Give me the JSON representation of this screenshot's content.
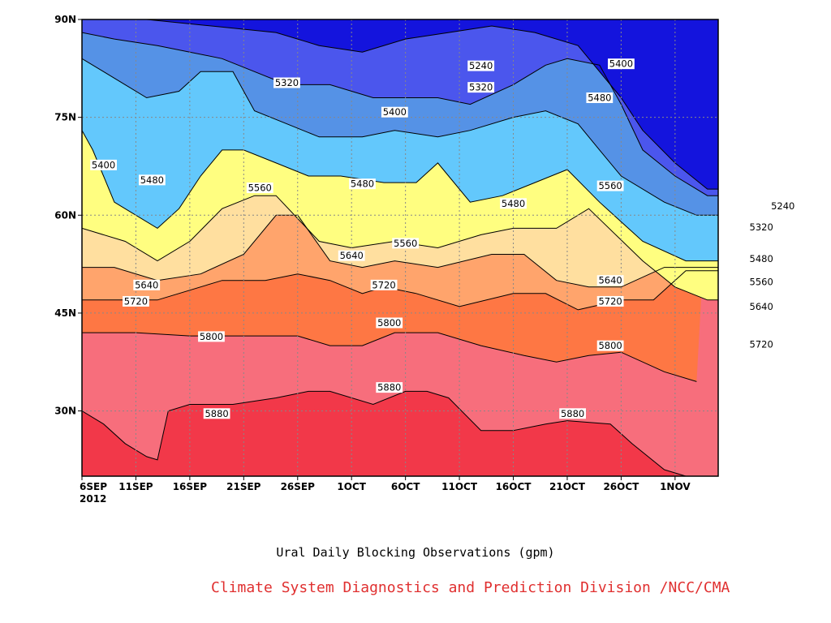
{
  "chart_data": {
    "type": "contour",
    "title": "Ural Daily Blocking Observations (gpm)",
    "credit": "Climate System Diagnostics and Prediction Division /NCC/CMA",
    "x_ticks": [
      "6SEP",
      "11SEP",
      "16SEP",
      "21SEP",
      "26SEP",
      "1OCT",
      "6OCT",
      "11OCT",
      "16OCT",
      "21OCT",
      "26OCT",
      "1NOV"
    ],
    "x_year": "2012",
    "x_range": [
      "2012-09-06",
      "2012-11-04"
    ],
    "y_ticks": [
      "30N",
      "45N",
      "60N",
      "75N",
      "90N"
    ],
    "y_range": [
      20,
      90
    ],
    "grid": true,
    "levels": [
      5240,
      5320,
      5400,
      5480,
      5560,
      5640,
      5720,
      5800,
      5880
    ],
    "colors": [
      "#f23849",
      "#f76e7c",
      "#fe7744",
      "#ffa46c",
      "#ffdf9f",
      "#fffe80",
      "#63c8fc",
      "#5592e6",
      "#4b56ed",
      "#1414dd",
      "#0c1e7c"
    ],
    "contour_labels": [
      {
        "value": "5880",
        "day": 12.5,
        "lat": 29.6
      },
      {
        "value": "5880",
        "day": 28.5,
        "lat": 33.6
      },
      {
        "value": "5880",
        "day": 45.5,
        "lat": 29.6
      },
      {
        "value": "5800",
        "day": 12.0,
        "lat": 41.4
      },
      {
        "value": "5800",
        "day": 28.5,
        "lat": 43.5
      },
      {
        "value": "5800",
        "day": 49.0,
        "lat": 40.0
      },
      {
        "value": "5720",
        "day": 5.0,
        "lat": 46.8
      },
      {
        "value": "5720",
        "day": 28.0,
        "lat": 49.3
      },
      {
        "value": "5720",
        "day": 49.0,
        "lat": 46.8
      },
      {
        "value": "5720",
        "day": 63.0,
        "lat": 40.2
      },
      {
        "value": "5640",
        "day": 6.0,
        "lat": 49.3
      },
      {
        "value": "5640",
        "day": 25.0,
        "lat": 53.8
      },
      {
        "value": "5640",
        "day": 49.0,
        "lat": 50.0
      },
      {
        "value": "5640",
        "day": 63.0,
        "lat": 46.0
      },
      {
        "value": "5560",
        "day": 16.5,
        "lat": 64.2
      },
      {
        "value": "5560",
        "day": 30.0,
        "lat": 55.7
      },
      {
        "value": "5560",
        "day": 49.0,
        "lat": 64.5
      },
      {
        "value": "5560",
        "day": 63.0,
        "lat": 49.8
      },
      {
        "value": "5480",
        "day": 6.5,
        "lat": 65.4
      },
      {
        "value": "5480",
        "day": 26.0,
        "lat": 64.8
      },
      {
        "value": "5480",
        "day": 40.0,
        "lat": 61.8
      },
      {
        "value": "5480",
        "day": 48.0,
        "lat": 78.0
      },
      {
        "value": "5480",
        "day": 63.0,
        "lat": 53.3
      },
      {
        "value": "5400",
        "day": 2.0,
        "lat": 67.7
      },
      {
        "value": "5400",
        "day": 29.0,
        "lat": 75.8
      },
      {
        "value": "5400",
        "day": 50.0,
        "lat": 83.2
      },
      {
        "value": "5320",
        "day": 19.0,
        "lat": 80.3
      },
      {
        "value": "5320",
        "day": 37.0,
        "lat": 79.6
      },
      {
        "value": "5320",
        "day": 63.0,
        "lat": 58.2
      },
      {
        "value": "5240",
        "day": 37.0,
        "lat": 82.9
      },
      {
        "value": "5240",
        "day": 65.0,
        "lat": 61.4
      }
    ]
  }
}
